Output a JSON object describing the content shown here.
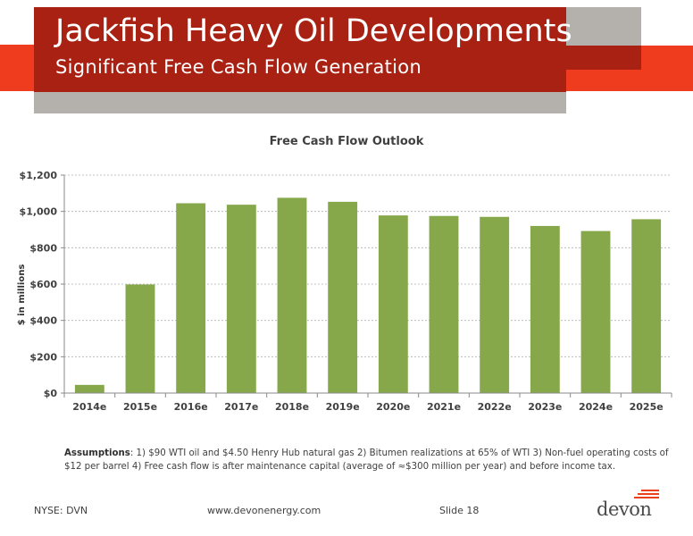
{
  "header": {
    "title": "Jackfish Heavy Oil Developments",
    "subtitle": "Significant Free Cash Flow Generation",
    "colors": {
      "red": "#a82112",
      "orange": "#f03c1e",
      "gray": "#b4b0ab"
    }
  },
  "chart_data": {
    "type": "bar",
    "title": "Free Cash Flow Outlook",
    "xlabel": "",
    "ylabel": "$ in millions",
    "categories": [
      "2014e",
      "2015e",
      "2016e",
      "2017e",
      "2018e",
      "2019e",
      "2020e",
      "2021e",
      "2022e",
      "2023e",
      "2024e",
      "2025e"
    ],
    "values": [
      45,
      598,
      1045,
      1037,
      1075,
      1053,
      978,
      975,
      970,
      920,
      892,
      957
    ],
    "yticks": [
      "$0",
      "$200",
      "$400",
      "$600",
      "$800",
      "$1,000",
      "$1,200"
    ],
    "ylim": [
      0,
      1200
    ],
    "grid": true,
    "bar_color": "#86a84a"
  },
  "assumptions": {
    "label": "Assumptions",
    "text": ": 1) $90 WTI oil and $4.50 Henry Hub natural gas 2) Bitumen realizations at 65% of WTI  3) Non-fuel operating costs of $12 per barrel  4) Free cash flow is after maintenance capital (average of ≈$300 million per year) and before income tax."
  },
  "footer": {
    "ticker": "NYSE: DVN",
    "website": "www.devonenergy.com",
    "slide": "Slide 18",
    "logo_text": "devon"
  }
}
